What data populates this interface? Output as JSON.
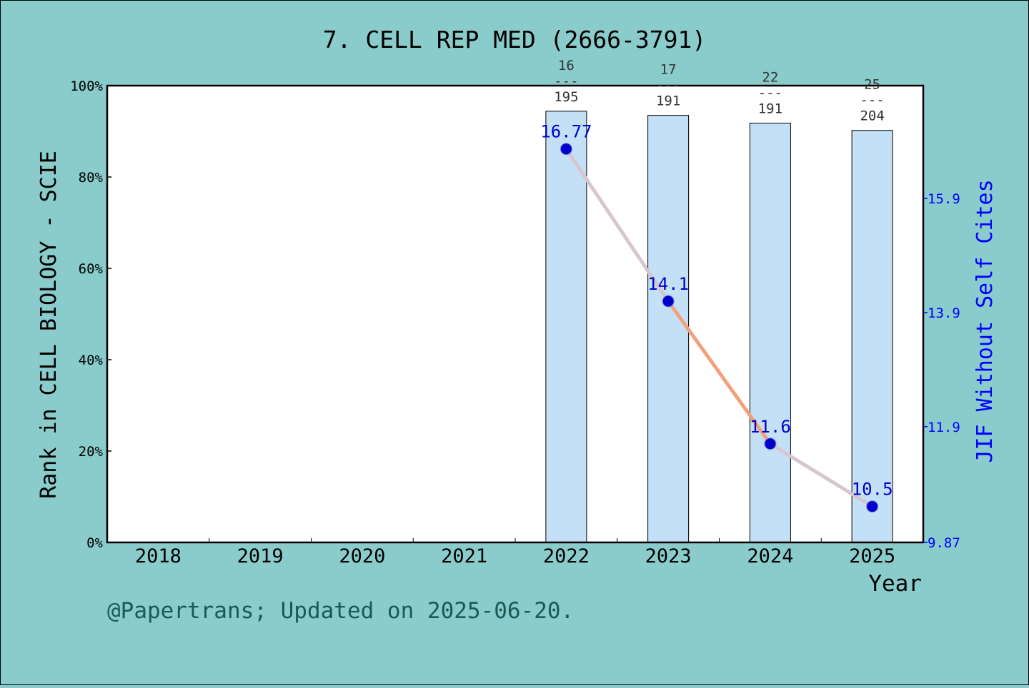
{
  "chart_data": {
    "type": "bar",
    "title": "7. CELL REP MED (2666-3791)",
    "xlabel": "Year",
    "ylabel": "Rank in CELL BIOLOGY - SCIE",
    "y2label": "JIF Without Self Cites",
    "footer": "@Papertrans; Updated on 2025-06-20.",
    "categories": [
      "2018",
      "2019",
      "2020",
      "2021",
      "2022",
      "2023",
      "2024",
      "2025"
    ],
    "ylim": [
      0,
      100
    ],
    "yticks": [
      "0%",
      "20%",
      "40%",
      "60%",
      "80%",
      "100%"
    ],
    "y2lim": [
      9.87,
      17.88
    ],
    "y2ticks": [
      "9.87",
      "11.9",
      "13.9",
      "15.9"
    ],
    "y2tick_values": [
      9.87,
      11.9,
      13.9,
      15.9
    ],
    "series": [
      {
        "kind": "bar",
        "values": [
          null,
          null,
          null,
          null,
          94.4,
          93.5,
          91.8,
          90.2
        ],
        "rank": [
          null,
          null,
          null,
          null,
          "16",
          "17",
          "22",
          "25"
        ],
        "total": [
          null,
          null,
          null,
          null,
          "195",
          "191",
          "191",
          "204"
        ]
      },
      {
        "kind": "line",
        "values": [
          null,
          null,
          null,
          null,
          16.77,
          14.1,
          11.6,
          10.5
        ],
        "labels": [
          null,
          null,
          null,
          null,
          "16.77",
          "14.1",
          "11.6",
          "10.5"
        ]
      }
    ],
    "colors": {
      "background": "#8acbcb",
      "plot": "#ffffff",
      "bar": "#c4e0f6",
      "line": "#f4a07c",
      "line_alt": "#c8cde6",
      "marker": "#0000cc",
      "y2_axis": "#0000ff",
      "footer": "#1a5a55"
    },
    "grid": false
  }
}
